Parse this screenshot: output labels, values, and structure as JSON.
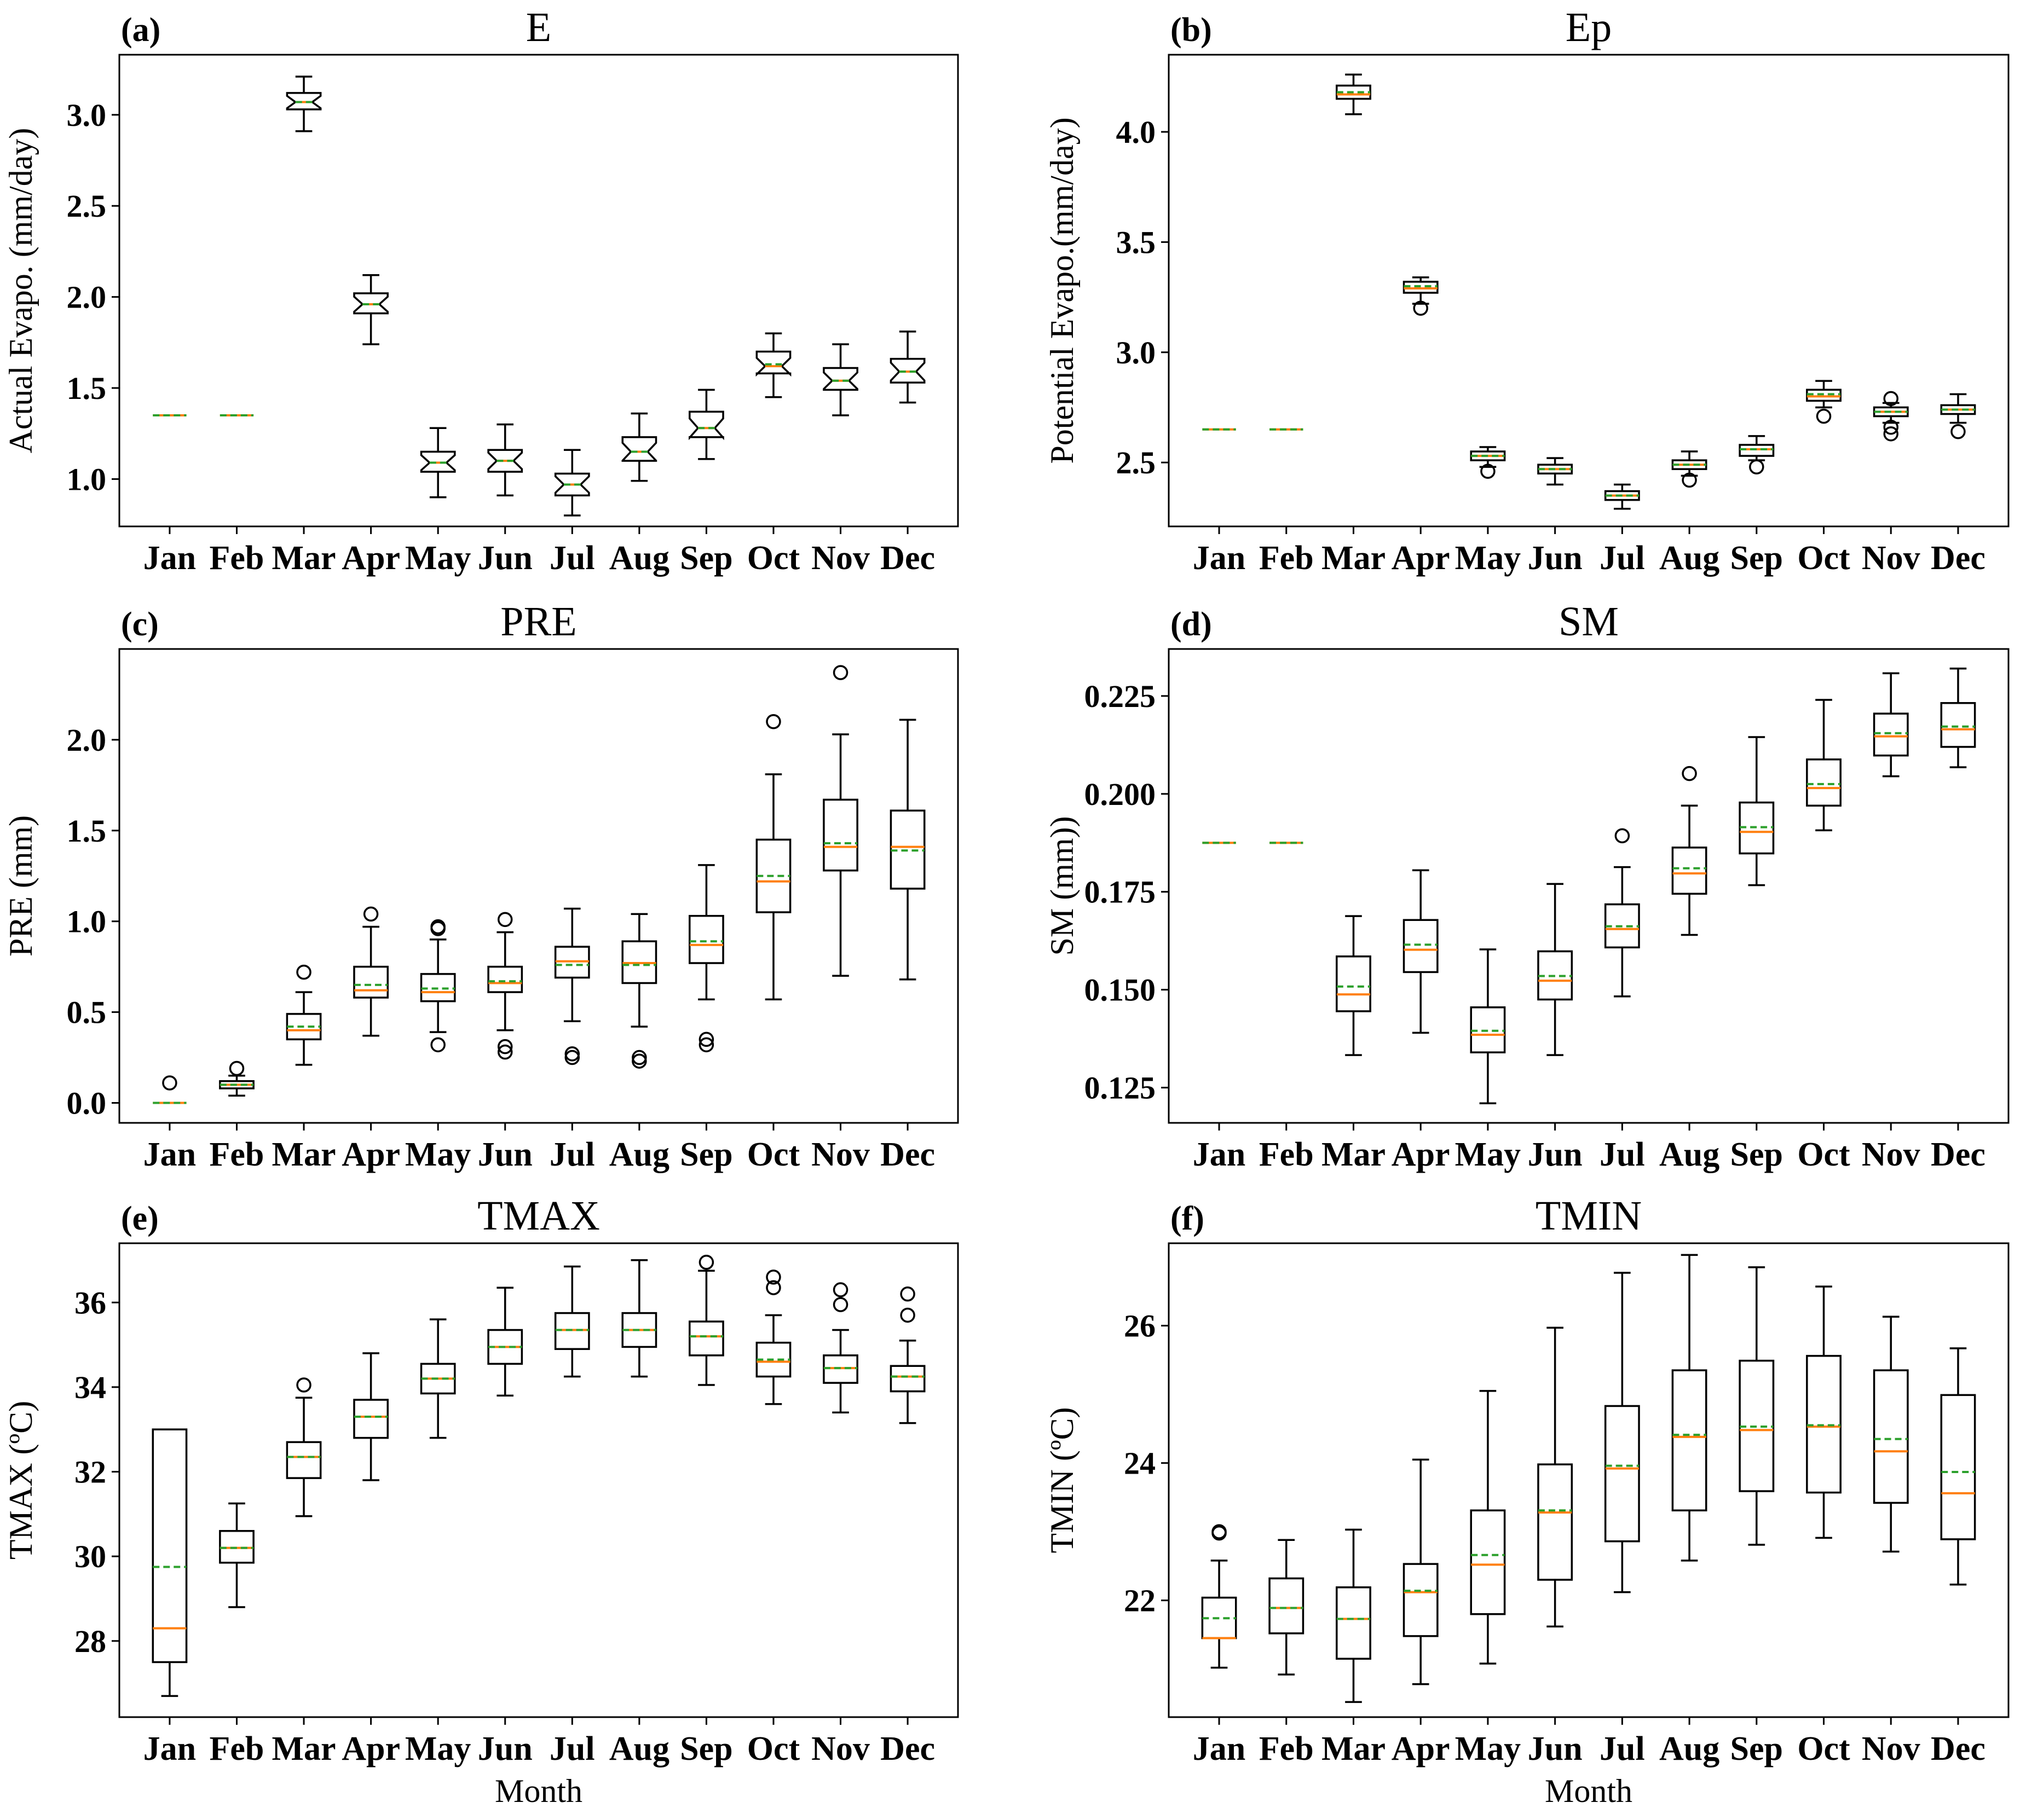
{
  "figure": {
    "xlabel": "Month"
  },
  "chart_data": [
    {
      "type": "box",
      "label": "(a)",
      "title": "E",
      "ylabel": "Actual Evapo. (mm/day)",
      "notched": true,
      "show_xlabel": false,
      "categories": [
        "Jan",
        "Feb",
        "Mar",
        "Apr",
        "May",
        "Jun",
        "Jul",
        "Aug",
        "Sep",
        "Oct",
        "Nov",
        "Dec"
      ],
      "ylim": [
        0.74,
        3.33
      ],
      "yticks": [
        1.0,
        1.5,
        2.0,
        2.5,
        3.0
      ],
      "ytick_labels": [
        "1.0",
        "1.5",
        "2.0",
        "2.5",
        "3.0"
      ],
      "boxes": [
        {
          "wlo": 1.35,
          "q1": 1.35,
          "med": 1.35,
          "q3": 1.35,
          "whi": 1.35,
          "mean": 1.35,
          "fliers": []
        },
        {
          "wlo": 1.35,
          "q1": 1.35,
          "med": 1.35,
          "q3": 1.35,
          "whi": 1.35,
          "mean": 1.35,
          "fliers": []
        },
        {
          "wlo": 2.91,
          "q1": 3.03,
          "med": 3.07,
          "q3": 3.12,
          "whi": 3.21,
          "mean": 3.07,
          "fliers": []
        },
        {
          "wlo": 1.74,
          "q1": 1.91,
          "med": 1.96,
          "q3": 2.02,
          "whi": 2.12,
          "mean": 1.96,
          "fliers": []
        },
        {
          "wlo": 0.9,
          "q1": 1.04,
          "med": 1.09,
          "q3": 1.15,
          "whi": 1.28,
          "mean": 1.09,
          "fliers": []
        },
        {
          "wlo": 0.91,
          "q1": 1.04,
          "med": 1.1,
          "q3": 1.16,
          "whi": 1.3,
          "mean": 1.1,
          "fliers": []
        },
        {
          "wlo": 0.8,
          "q1": 0.91,
          "med": 0.97,
          "q3": 1.03,
          "whi": 1.16,
          "mean": 0.97,
          "fliers": []
        },
        {
          "wlo": 0.99,
          "q1": 1.1,
          "med": 1.15,
          "q3": 1.23,
          "whi": 1.36,
          "mean": 1.15,
          "fliers": []
        },
        {
          "wlo": 1.11,
          "q1": 1.23,
          "med": 1.28,
          "q3": 1.37,
          "whi": 1.49,
          "mean": 1.28,
          "fliers": []
        },
        {
          "wlo": 1.45,
          "q1": 1.58,
          "med": 1.62,
          "q3": 1.7,
          "whi": 1.8,
          "mean": 1.63,
          "fliers": []
        },
        {
          "wlo": 1.35,
          "q1": 1.49,
          "med": 1.54,
          "q3": 1.61,
          "whi": 1.74,
          "mean": 1.54,
          "fliers": []
        },
        {
          "wlo": 1.42,
          "q1": 1.53,
          "med": 1.59,
          "q3": 1.66,
          "whi": 1.81,
          "mean": 1.59,
          "fliers": []
        }
      ]
    },
    {
      "type": "box",
      "label": "(b)",
      "title": "Ep",
      "ylabel": "Potential Evapo.(mm/day)",
      "notched": false,
      "show_xlabel": false,
      "categories": [
        "Jan",
        "Feb",
        "Mar",
        "Apr",
        "May",
        "Jun",
        "Jul",
        "Aug",
        "Sep",
        "Oct",
        "Nov",
        "Dec"
      ],
      "ylim": [
        2.21,
        4.35
      ],
      "yticks": [
        2.5,
        3.0,
        3.5,
        4.0
      ],
      "ytick_labels": [
        "2.5",
        "3.0",
        "3.5",
        "4.0"
      ],
      "boxes": [
        {
          "wlo": 2.65,
          "q1": 2.65,
          "med": 2.65,
          "q3": 2.65,
          "whi": 2.65,
          "mean": 2.65,
          "fliers": []
        },
        {
          "wlo": 2.65,
          "q1": 2.65,
          "med": 2.65,
          "q3": 2.65,
          "whi": 2.65,
          "mean": 2.65,
          "fliers": []
        },
        {
          "wlo": 4.08,
          "q1": 4.15,
          "med": 4.17,
          "q3": 4.21,
          "whi": 4.26,
          "mean": 4.18,
          "fliers": []
        },
        {
          "wlo": 3.22,
          "q1": 3.27,
          "med": 3.29,
          "q3": 3.32,
          "whi": 3.34,
          "mean": 3.3,
          "fliers": [
            3.2
          ]
        },
        {
          "wlo": 2.48,
          "q1": 2.51,
          "med": 2.53,
          "q3": 2.55,
          "whi": 2.57,
          "mean": 2.53,
          "fliers": [
            2.46
          ]
        },
        {
          "wlo": 2.4,
          "q1": 2.45,
          "med": 2.47,
          "q3": 2.49,
          "whi": 2.52,
          "mean": 2.47,
          "fliers": []
        },
        {
          "wlo": 2.29,
          "q1": 2.33,
          "med": 2.35,
          "q3": 2.37,
          "whi": 2.4,
          "mean": 2.35,
          "fliers": []
        },
        {
          "wlo": 2.44,
          "q1": 2.47,
          "med": 2.49,
          "q3": 2.51,
          "whi": 2.55,
          "mean": 2.49,
          "fliers": [
            2.42
          ]
        },
        {
          "wlo": 2.51,
          "q1": 2.53,
          "med": 2.56,
          "q3": 2.58,
          "whi": 2.62,
          "mean": 2.56,
          "fliers": [
            2.48
          ]
        },
        {
          "wlo": 2.75,
          "q1": 2.78,
          "med": 2.8,
          "q3": 2.83,
          "whi": 2.87,
          "mean": 2.81,
          "fliers": [
            2.71
          ]
        },
        {
          "wlo": 2.68,
          "q1": 2.71,
          "med": 2.73,
          "q3": 2.75,
          "whi": 2.77,
          "mean": 2.73,
          "fliers": [
            2.63,
            2.66,
            2.79
          ]
        },
        {
          "wlo": 2.68,
          "q1": 2.72,
          "med": 2.74,
          "q3": 2.76,
          "whi": 2.81,
          "mean": 2.74,
          "fliers": [
            2.64
          ]
        }
      ]
    },
    {
      "type": "box",
      "label": "(c)",
      "title": "PRE",
      "ylabel": "PRE (mm)",
      "notched": false,
      "show_xlabel": false,
      "categories": [
        "Jan",
        "Feb",
        "Mar",
        "Apr",
        "May",
        "Jun",
        "Jul",
        "Aug",
        "Sep",
        "Oct",
        "Nov",
        "Dec"
      ],
      "ylim": [
        -0.11,
        2.5
      ],
      "yticks": [
        0.0,
        0.5,
        1.0,
        1.5,
        2.0
      ],
      "ytick_labels": [
        "0.0",
        "0.5",
        "1.0",
        "1.5",
        "2.0"
      ],
      "boxes": [
        {
          "wlo": 0.0,
          "q1": 0.0,
          "med": 0.0,
          "q3": 0.0,
          "whi": 0.0,
          "mean": 0.0,
          "fliers": [
            0.11
          ]
        },
        {
          "wlo": 0.04,
          "q1": 0.08,
          "med": 0.1,
          "q3": 0.12,
          "whi": 0.15,
          "mean": 0.1,
          "fliers": [
            0.19
          ]
        },
        {
          "wlo": 0.21,
          "q1": 0.35,
          "med": 0.4,
          "q3": 0.49,
          "whi": 0.61,
          "mean": 0.42,
          "fliers": [
            0.72
          ]
        },
        {
          "wlo": 0.37,
          "q1": 0.58,
          "med": 0.62,
          "q3": 0.75,
          "whi": 0.97,
          "mean": 0.65,
          "fliers": [
            1.04
          ]
        },
        {
          "wlo": 0.39,
          "q1": 0.56,
          "med": 0.61,
          "q3": 0.71,
          "whi": 0.9,
          "mean": 0.63,
          "fliers": [
            0.32,
            0.96,
            0.97
          ]
        },
        {
          "wlo": 0.4,
          "q1": 0.61,
          "med": 0.66,
          "q3": 0.75,
          "whi": 0.94,
          "mean": 0.67,
          "fliers": [
            0.28,
            0.31,
            1.01
          ]
        },
        {
          "wlo": 0.45,
          "q1": 0.69,
          "med": 0.78,
          "q3": 0.86,
          "whi": 1.07,
          "mean": 0.76,
          "fliers": [
            0.25,
            0.27
          ]
        },
        {
          "wlo": 0.42,
          "q1": 0.66,
          "med": 0.77,
          "q3": 0.89,
          "whi": 1.04,
          "mean": 0.76,
          "fliers": [
            0.23,
            0.25
          ]
        },
        {
          "wlo": 0.57,
          "q1": 0.77,
          "med": 0.87,
          "q3": 1.03,
          "whi": 1.31,
          "mean": 0.89,
          "fliers": [
            0.32,
            0.35
          ]
        },
        {
          "wlo": 0.57,
          "q1": 1.05,
          "med": 1.22,
          "q3": 1.45,
          "whi": 1.81,
          "mean": 1.25,
          "fliers": [
            2.1
          ]
        },
        {
          "wlo": 0.7,
          "q1": 1.28,
          "med": 1.41,
          "q3": 1.67,
          "whi": 2.03,
          "mean": 1.43,
          "fliers": [
            2.37
          ]
        },
        {
          "wlo": 0.68,
          "q1": 1.18,
          "med": 1.41,
          "q3": 1.61,
          "whi": 2.11,
          "mean": 1.39,
          "fliers": []
        }
      ]
    },
    {
      "type": "box",
      "label": "(d)",
      "title": "SM",
      "ylabel": "SM (mm))",
      "notched": false,
      "show_xlabel": false,
      "categories": [
        "Jan",
        "Feb",
        "Mar",
        "Apr",
        "May",
        "Jun",
        "Jul",
        "Aug",
        "Sep",
        "Oct",
        "Nov",
        "Dec"
      ],
      "ylim": [
        0.116,
        0.237
      ],
      "yticks": [
        0.125,
        0.15,
        0.175,
        0.2,
        0.225
      ],
      "ytick_labels": [
        "0.125",
        "0.150",
        "0.175",
        "0.200",
        "0.225"
      ],
      "boxes": [
        {
          "wlo": 0.1875,
          "q1": 0.1875,
          "med": 0.1875,
          "q3": 0.1875,
          "whi": 0.1875,
          "mean": 0.1875,
          "fliers": []
        },
        {
          "wlo": 0.1875,
          "q1": 0.1875,
          "med": 0.1875,
          "q3": 0.1875,
          "whi": 0.1875,
          "mean": 0.1875,
          "fliers": []
        },
        {
          "wlo": 0.1333,
          "q1": 0.1445,
          "med": 0.1488,
          "q3": 0.1585,
          "whi": 0.1688,
          "mean": 0.1508,
          "fliers": []
        },
        {
          "wlo": 0.139,
          "q1": 0.1545,
          "med": 0.1602,
          "q3": 0.1678,
          "whi": 0.1805,
          "mean": 0.1615,
          "fliers": []
        },
        {
          "wlo": 0.121,
          "q1": 0.134,
          "med": 0.1385,
          "q3": 0.1455,
          "whi": 0.1603,
          "mean": 0.1395,
          "fliers": []
        },
        {
          "wlo": 0.1333,
          "q1": 0.1475,
          "med": 0.1523,
          "q3": 0.1598,
          "whi": 0.177,
          "mean": 0.1535,
          "fliers": []
        },
        {
          "wlo": 0.1483,
          "q1": 0.1608,
          "med": 0.1655,
          "q3": 0.1718,
          "whi": 0.1813,
          "mean": 0.1662,
          "fliers": [
            0.1893
          ]
        },
        {
          "wlo": 0.164,
          "q1": 0.1745,
          "med": 0.1797,
          "q3": 0.1863,
          "whi": 0.197,
          "mean": 0.181,
          "fliers": [
            0.2052
          ]
        },
        {
          "wlo": 0.1767,
          "q1": 0.1848,
          "med": 0.1903,
          "q3": 0.1978,
          "whi": 0.2145,
          "mean": 0.1915,
          "fliers": []
        },
        {
          "wlo": 0.1907,
          "q1": 0.197,
          "med": 0.2015,
          "q3": 0.2088,
          "whi": 0.224,
          "mean": 0.2025,
          "fliers": []
        },
        {
          "wlo": 0.2045,
          "q1": 0.2098,
          "med": 0.2147,
          "q3": 0.2205,
          "whi": 0.2308,
          "mean": 0.2155,
          "fliers": []
        },
        {
          "wlo": 0.2068,
          "q1": 0.212,
          "med": 0.2165,
          "q3": 0.2232,
          "whi": 0.232,
          "mean": 0.2172,
          "fliers": []
        }
      ]
    },
    {
      "type": "box",
      "label": "(e)",
      "title": "TMAX",
      "ylabel": "TMAX (ºC)",
      "notched": false,
      "show_xlabel": true,
      "categories": [
        "Jan",
        "Feb",
        "Mar",
        "Apr",
        "May",
        "Jun",
        "Jul",
        "Aug",
        "Sep",
        "Oct",
        "Nov",
        "Dec"
      ],
      "ylim": [
        26.2,
        37.4
      ],
      "yticks": [
        28,
        30,
        32,
        34,
        36
      ],
      "ytick_labels": [
        "28",
        "30",
        "32",
        "34",
        "36"
      ],
      "boxes": [
        {
          "wlo": 26.7,
          "q1": 27.5,
          "med": 28.3,
          "q3": 33.0,
          "whi": 33.0,
          "mean": 29.75,
          "fliers": []
        },
        {
          "wlo": 28.8,
          "q1": 29.85,
          "med": 30.2,
          "q3": 30.6,
          "whi": 31.25,
          "mean": 30.2,
          "fliers": []
        },
        {
          "wlo": 30.95,
          "q1": 31.85,
          "med": 32.35,
          "q3": 32.7,
          "whi": 33.75,
          "mean": 32.35,
          "fliers": [
            34.05
          ]
        },
        {
          "wlo": 31.8,
          "q1": 32.8,
          "med": 33.3,
          "q3": 33.7,
          "whi": 34.8,
          "mean": 33.3,
          "fliers": []
        },
        {
          "wlo": 32.8,
          "q1": 33.85,
          "med": 34.2,
          "q3": 34.55,
          "whi": 35.6,
          "mean": 34.2,
          "fliers": []
        },
        {
          "wlo": 33.8,
          "q1": 34.55,
          "med": 34.95,
          "q3": 35.35,
          "whi": 36.35,
          "mean": 34.95,
          "fliers": []
        },
        {
          "wlo": 34.25,
          "q1": 34.9,
          "med": 35.35,
          "q3": 35.75,
          "whi": 36.85,
          "mean": 35.35,
          "fliers": []
        },
        {
          "wlo": 34.25,
          "q1": 34.95,
          "med": 35.35,
          "q3": 35.75,
          "whi": 37.0,
          "mean": 35.35,
          "fliers": []
        },
        {
          "wlo": 34.05,
          "q1": 34.75,
          "med": 35.2,
          "q3": 35.55,
          "whi": 36.75,
          "mean": 35.2,
          "fliers": [
            36.95
          ]
        },
        {
          "wlo": 33.6,
          "q1": 34.25,
          "med": 34.6,
          "q3": 35.05,
          "whi": 35.7,
          "mean": 34.65,
          "fliers": [
            36.35,
            36.6
          ]
        },
        {
          "wlo": 33.4,
          "q1": 34.1,
          "med": 34.45,
          "q3": 34.75,
          "whi": 35.35,
          "mean": 34.45,
          "fliers": [
            35.95,
            36.3
          ]
        },
        {
          "wlo": 33.15,
          "q1": 33.9,
          "med": 34.25,
          "q3": 34.5,
          "whi": 35.1,
          "mean": 34.25,
          "fliers": [
            35.7,
            36.2
          ]
        }
      ]
    },
    {
      "type": "box",
      "label": "(f)",
      "title": "TMIN",
      "ylabel": "TMIN (ºC)",
      "notched": false,
      "show_xlabel": true,
      "categories": [
        "Jan",
        "Feb",
        "Mar",
        "Apr",
        "May",
        "Jun",
        "Jul",
        "Aug",
        "Sep",
        "Oct",
        "Nov",
        "Dec"
      ],
      "ylim": [
        20.3,
        27.2
      ],
      "yticks": [
        22,
        24,
        26
      ],
      "ytick_labels": [
        "22",
        "24",
        "26"
      ],
      "boxes": [
        {
          "wlo": 21.02,
          "q1": 21.45,
          "med": 21.45,
          "q3": 22.04,
          "whi": 22.58,
          "mean": 21.74,
          "fliers": [
            22.98,
            23.0
          ]
        },
        {
          "wlo": 20.92,
          "q1": 21.52,
          "med": 21.89,
          "q3": 22.32,
          "whi": 22.88,
          "mean": 21.89,
          "fliers": []
        },
        {
          "wlo": 20.52,
          "q1": 21.15,
          "med": 21.73,
          "q3": 22.19,
          "whi": 23.03,
          "mean": 21.73,
          "fliers": []
        },
        {
          "wlo": 20.78,
          "q1": 21.48,
          "med": 22.12,
          "q3": 22.53,
          "whi": 24.05,
          "mean": 22.14,
          "fliers": []
        },
        {
          "wlo": 21.08,
          "q1": 21.8,
          "med": 22.52,
          "q3": 23.31,
          "whi": 25.05,
          "mean": 22.66,
          "fliers": []
        },
        {
          "wlo": 21.62,
          "q1": 22.3,
          "med": 23.28,
          "q3": 23.98,
          "whi": 25.97,
          "mean": 23.31,
          "fliers": []
        },
        {
          "wlo": 22.12,
          "q1": 22.86,
          "med": 23.92,
          "q3": 24.83,
          "whi": 26.77,
          "mean": 23.96,
          "fliers": []
        },
        {
          "wlo": 22.58,
          "q1": 23.31,
          "med": 24.38,
          "q3": 25.35,
          "whi": 27.03,
          "mean": 24.41,
          "fliers": []
        },
        {
          "wlo": 22.81,
          "q1": 23.59,
          "med": 24.48,
          "q3": 25.49,
          "whi": 26.85,
          "mean": 24.53,
          "fliers": []
        },
        {
          "wlo": 22.91,
          "q1": 23.57,
          "med": 24.53,
          "q3": 25.56,
          "whi": 26.57,
          "mean": 24.55,
          "fliers": []
        },
        {
          "wlo": 22.71,
          "q1": 23.42,
          "med": 24.17,
          "q3": 25.35,
          "whi": 26.13,
          "mean": 24.35,
          "fliers": []
        },
        {
          "wlo": 22.23,
          "q1": 22.89,
          "med": 23.56,
          "q3": 24.99,
          "whi": 25.67,
          "mean": 23.87,
          "fliers": []
        }
      ]
    }
  ]
}
